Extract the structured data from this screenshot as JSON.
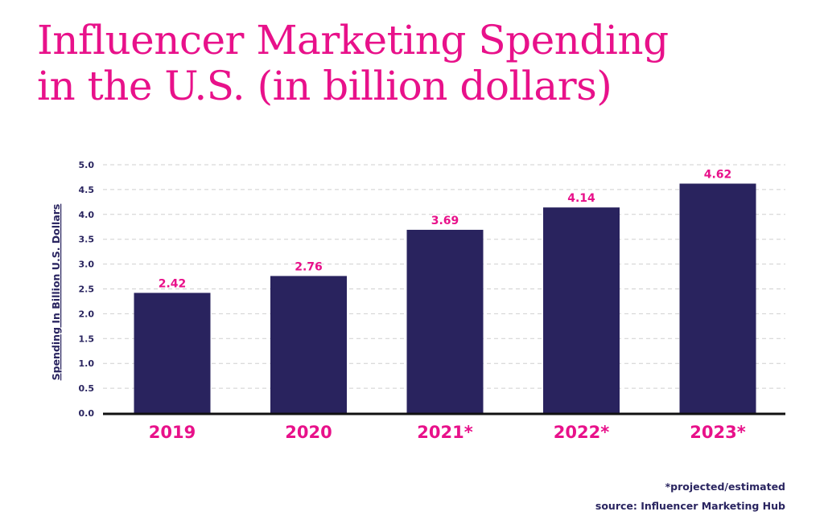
{
  "title_lines": [
    "Influencer Marketing Spending",
    "in the U.S. (in billion dollars)"
  ],
  "footnotes": {
    "projection_note": "*projected/estimated",
    "source": "source: Influencer Marketing Hub"
  },
  "colors": {
    "accent": "#e8118a",
    "bar": "#29235e",
    "axis_text": "#2a2560",
    "grid": "#cfcfcf"
  },
  "chart_data": {
    "type": "bar",
    "title": "Influencer Marketing Spending in the U.S. (in billion dollars)",
    "xlabel": "",
    "ylabel": "Spending In Billion U.S. Dollars",
    "categories": [
      "2019",
      "2020",
      "2021*",
      "2022*",
      "2023*"
    ],
    "values": [
      2.42,
      2.76,
      3.69,
      4.14,
      4.62
    ],
    "data_labels": [
      "2.42",
      "2.76",
      "3.69",
      "4.14",
      "4.62"
    ],
    "ylim": [
      0,
      5
    ],
    "yticks": [
      "0.0",
      "0.5",
      "1.0",
      "1.5",
      "2.0",
      "2.5",
      "3.0",
      "3.5",
      "4.0",
      "4.5",
      "5.0"
    ],
    "grid": true,
    "legend": "none"
  }
}
